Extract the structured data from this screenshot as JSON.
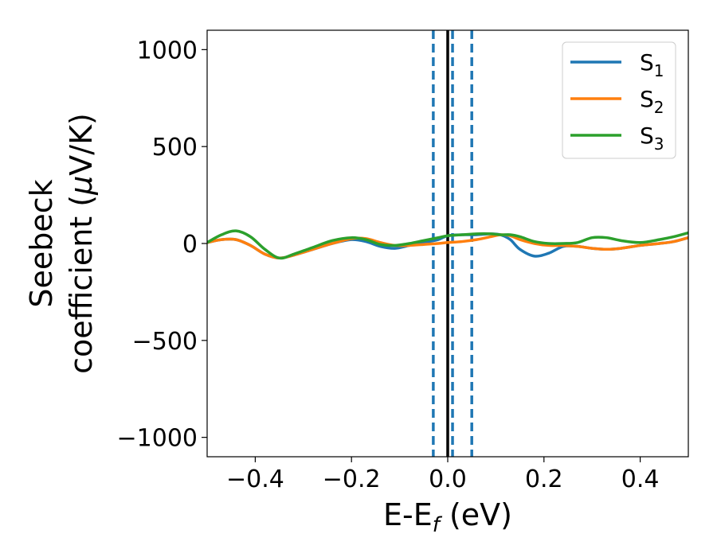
{
  "chart_data": {
    "type": "line",
    "title": "",
    "xlabel": "E-E",
    "xlabel_sub": "f",
    "xlabel_unit": " (eV)",
    "ylabel_line1": "Seebeck",
    "ylabel_line2": "coefficient  (",
    "ylabel_mu": "μ",
    "ylabel_unit": "V/K)",
    "xlim": [
      -0.5,
      0.5
    ],
    "ylim": [
      -1100,
      1100
    ],
    "x_ticks": [
      -0.4,
      -0.2,
      0.0,
      0.2,
      0.4
    ],
    "x_tick_labels": [
      "−0.4",
      "−0.2",
      "0.0",
      "0.2",
      "0.4"
    ],
    "y_ticks": [
      -1000,
      -500,
      0,
      500,
      1000
    ],
    "y_tick_labels": [
      "−1000",
      "−500",
      "0",
      "500",
      "1000"
    ],
    "grid": false,
    "legend_position": "top-right",
    "vertical_lines": [
      {
        "x": 0.0,
        "style": "solid",
        "color": "#000000"
      },
      {
        "x": -0.03,
        "style": "dashed",
        "color": "#1f77b4"
      },
      {
        "x": 0.01,
        "style": "dashed",
        "color": "#1f77b4"
      },
      {
        "x": 0.05,
        "style": "dashed",
        "color": "#1f77b4"
      }
    ],
    "series": [
      {
        "name": "S",
        "sub": "1",
        "color": "#1f77b4",
        "x": [
          -0.5,
          -0.47,
          -0.44,
          -0.41,
          -0.38,
          -0.35,
          -0.32,
          -0.28,
          -0.24,
          -0.2,
          -0.17,
          -0.14,
          -0.11,
          -0.08,
          -0.05,
          -0.02,
          0.0,
          0.03,
          0.06,
          0.09,
          0.11,
          0.13,
          0.15,
          0.18,
          0.21,
          0.24,
          0.27,
          0.3,
          0.33,
          0.36,
          0.4,
          0.44,
          0.47,
          0.5
        ],
        "y": [
          5,
          20,
          20,
          -10,
          -55,
          -75,
          -60,
          -30,
          0,
          20,
          10,
          -15,
          -25,
          -10,
          5,
          20,
          40,
          45,
          45,
          50,
          45,
          20,
          -30,
          -65,
          -50,
          -15,
          -15,
          -25,
          -30,
          -25,
          -10,
          0,
          10,
          30
        ]
      },
      {
        "name": "S",
        "sub": "2",
        "color": "#ff7f0e",
        "x": [
          -0.5,
          -0.47,
          -0.44,
          -0.41,
          -0.38,
          -0.35,
          -0.32,
          -0.28,
          -0.24,
          -0.2,
          -0.17,
          -0.14,
          -0.11,
          -0.08,
          -0.05,
          -0.02,
          0.0,
          0.03,
          0.06,
          0.09,
          0.11,
          0.13,
          0.15,
          0.18,
          0.21,
          0.24,
          0.27,
          0.3,
          0.33,
          0.36,
          0.4,
          0.44,
          0.47,
          0.5
        ],
        "y": [
          5,
          20,
          20,
          -10,
          -55,
          -75,
          -60,
          -30,
          0,
          25,
          25,
          5,
          -10,
          -10,
          -5,
          0,
          5,
          10,
          20,
          35,
          45,
          40,
          20,
          0,
          -10,
          -10,
          -15,
          -25,
          -30,
          -25,
          -10,
          0,
          10,
          30
        ]
      },
      {
        "name": "S",
        "sub": "3",
        "color": "#2ca02c",
        "x": [
          -0.5,
          -0.47,
          -0.44,
          -0.41,
          -0.38,
          -0.35,
          -0.32,
          -0.28,
          -0.24,
          -0.2,
          -0.17,
          -0.14,
          -0.11,
          -0.08,
          -0.05,
          -0.02,
          0.0,
          0.03,
          0.06,
          0.09,
          0.11,
          0.13,
          0.15,
          0.18,
          0.21,
          0.24,
          0.27,
          0.3,
          0.33,
          0.36,
          0.4,
          0.44,
          0.47,
          0.5
        ],
        "y": [
          5,
          45,
          65,
          35,
          -30,
          -75,
          -55,
          -20,
          15,
          30,
          20,
          -5,
          -10,
          0,
          15,
          30,
          40,
          45,
          50,
          50,
          45,
          45,
          35,
          10,
          0,
          0,
          5,
          30,
          30,
          15,
          5,
          20,
          35,
          55
        ]
      }
    ]
  }
}
